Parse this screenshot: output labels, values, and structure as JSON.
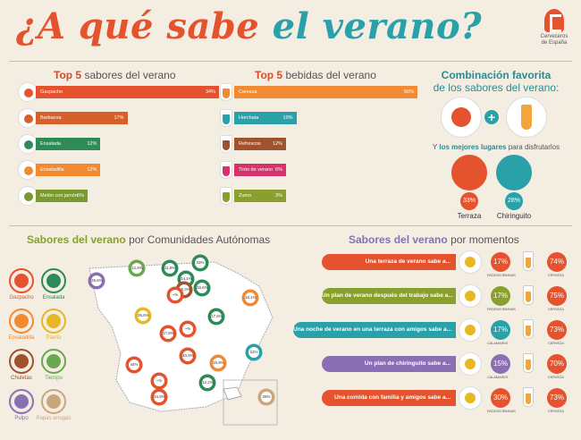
{
  "title": {
    "part1": "¿A qué sabe",
    "part2": "el verano?"
  },
  "logo": {
    "line1": "Cerveceros",
    "line2": "de España"
  },
  "sabores": {
    "heading_bold": "Top 5",
    "heading_rest": "sabores del verano",
    "items": [
      {
        "label": "Gazpacho",
        "pct": "34%",
        "value": 34,
        "color": "#e4532d",
        "icon": "gazpacho-icon"
      },
      {
        "label": "Barbacoa",
        "pct": "17%",
        "value": 17,
        "color": "#d6602a",
        "icon": "barbacoa-icon"
      },
      {
        "label": "Ensalada",
        "pct": "12%",
        "value": 12,
        "color": "#2e8b57",
        "icon": "ensalada-icon"
      },
      {
        "label": "Ensaladilla",
        "pct": "12%",
        "value": 12,
        "color": "#f08a33",
        "icon": "ensaladilla-icon"
      },
      {
        "label": "Melón con jamón",
        "pct": "6%",
        "value": 6,
        "color": "#7a9a2e",
        "icon": "melon-icon"
      }
    ]
  },
  "bebidas": {
    "heading_bold": "Top 5",
    "heading_rest": "bebidas del verano",
    "items": [
      {
        "label": "Cerveza",
        "pct": "56%",
        "value": 56,
        "color": "#f08a33",
        "icon": "cerveza-icon"
      },
      {
        "label": "Horchata",
        "pct": "19%",
        "value": 19,
        "color": "#2aa1a8",
        "icon": "horchata-icon"
      },
      {
        "label": "Refrescos",
        "pct": "12%",
        "value": 12,
        "color": "#a0522d",
        "icon": "refrescos-icon"
      },
      {
        "label": "Tinto de verano",
        "pct": "6%",
        "value": 6,
        "color": "#d6336c",
        "icon": "tinto-icon"
      },
      {
        "label": "Zumo",
        "pct": "3%",
        "value": 3,
        "color": "#8aa02e",
        "icon": "zumo-icon"
      }
    ]
  },
  "combinacion": {
    "line1": "Combinación favorita",
    "line2": "de los sabores del verano:",
    "lugares_pre": "Y",
    "lugares_bold": "los mejores lugares",
    "lugares_post": "para disfrutarlos",
    "places": [
      {
        "label": "Terraza",
        "pct": "33%",
        "value": 33,
        "color": "#e4532d"
      },
      {
        "label": "Chiringuito",
        "pct": "28%",
        "value": 28,
        "color": "#2aa1a8"
      }
    ]
  },
  "comunidades": {
    "heading_bold": "Sabores del verano",
    "heading_rest": "por Comunidades Autónomas",
    "legend": [
      {
        "label": "Gazpacho",
        "color": "#e4532d"
      },
      {
        "label": "Ensalada",
        "color": "#2e8b57"
      },
      {
        "label": "Ensaladilla",
        "color": "#f08a33"
      },
      {
        "label": "Paella",
        "color": "#e8b824"
      },
      {
        "label": "Chuletas",
        "color": "#a0522d"
      },
      {
        "label": "Tiempo",
        "color": "#6aa84f"
      },
      {
        "label": "Pulpo",
        "color": "#8a6fb5"
      },
      {
        "label": "Papas arrugás",
        "color": "#c9a77a"
      }
    ],
    "pins": [
      {
        "pct": "25,6%",
        "color": "#8a6fb5"
      },
      {
        "pct": "12,9%",
        "color": "#6aa84f"
      },
      {
        "pct": "11,9%",
        "color": "#2e8b57"
      },
      {
        "pct": "14,1%",
        "color": "#2e8b57"
      },
      {
        "pct": "15,6%",
        "color": "#2e8b57"
      },
      {
        "pct": "18,3%",
        "color": "#a0522d"
      },
      {
        "pct": "33%",
        "color": "#2e8b57"
      },
      {
        "pct": "16,1%",
        "color": "#f08a33"
      },
      {
        "pct": "26,6%",
        "color": "#e8b824"
      },
      {
        "pct": "~%",
        "color": "#e4532d"
      },
      {
        "pct": "17,6%",
        "color": "#2e8b57"
      },
      {
        "pct": "17,8%",
        "color": "#e4532d"
      },
      {
        "pct": "~%",
        "color": "#e4532d"
      },
      {
        "pct": "44%",
        "color": "#e4532d"
      },
      {
        "pct": "40,9%",
        "color": "#e4532d"
      },
      {
        "pct": "16,9%",
        "color": "#f08a33"
      },
      {
        "pct": "22%",
        "color": "#2aa1a8"
      },
      {
        "pct": "12,2%",
        "color": "#2e8b57"
      },
      {
        "pct": "~%",
        "color": "#e4532d"
      },
      {
        "pct": "34,9%",
        "color": "#e4532d"
      },
      {
        "pct": "26%",
        "color": "#c9a77a"
      }
    ]
  },
  "momentos": {
    "heading_bold": "Sabores del verano",
    "heading_rest": "por momentos",
    "rows": [
      {
        "text": "Una terraza de verano sabe a...",
        "color": "#e4532d",
        "food_pct": "17%",
        "food_label": "PATATAS BRAVAS",
        "food_color": "#e4532d",
        "drink_pct": "74%",
        "drink_label": "CERVEZA"
      },
      {
        "text": "Un plan de verano después del trabajo sabe a...",
        "color": "#8aa02e",
        "food_pct": "17%",
        "food_label": "PATATAS BRAVAS",
        "food_color": "#8aa02e",
        "drink_pct": "75%",
        "drink_label": "CERVEZA"
      },
      {
        "text": "Una noche de verano en una terraza con amigos sabe a...",
        "color": "#2aa1a8",
        "food_pct": "17%",
        "food_label": "CALAMARES",
        "food_color": "#2aa1a8",
        "drink_pct": "73%",
        "drink_label": "CERVEZA"
      },
      {
        "text": "Un plan de chiringuito sabe a...",
        "color": "#8a6fb5",
        "food_pct": "15%",
        "food_label": "CALAMARES",
        "food_color": "#8a6fb5",
        "drink_pct": "70%",
        "drink_label": "CERVEZA"
      },
      {
        "text": "Una comida con familia y amigos sabe a...",
        "color": "#e4532d",
        "food_pct": "30%",
        "food_label": "PATATAS BRAVAS",
        "food_color": "#e4532d",
        "drink_pct": "73%",
        "drink_label": "CERVEZA"
      }
    ]
  }
}
